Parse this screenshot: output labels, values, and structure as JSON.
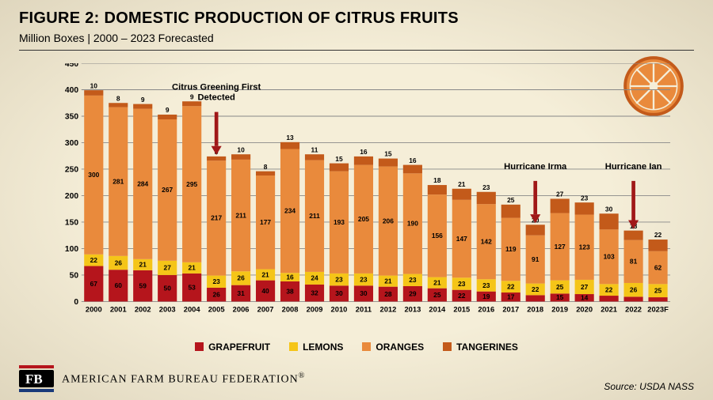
{
  "title": "FIGURE 2: DOMESTIC PRODUCTION OF CITRUS FRUITS",
  "title_fontsize": 20,
  "subtitle": "Million Boxes | 2000 – 2023 Forecasted",
  "subtitle_fontsize": 14,
  "background_color": "#f5eed8",
  "chart": {
    "type": "stacked-bar",
    "ylim": [
      0,
      450
    ],
    "ytick_step": 50,
    "yticks": [
      0,
      50,
      100,
      150,
      200,
      250,
      300,
      350,
      400,
      450
    ],
    "bar_width_ratio": 0.78,
    "grid_color": "#888888",
    "categories": [
      "2000",
      "2001",
      "2002",
      "2003",
      "2004",
      "2005",
      "2006",
      "2007",
      "2008",
      "2009",
      "2010",
      "2011",
      "2012",
      "2013",
      "2014",
      "2015",
      "2016",
      "2017",
      "2018",
      "2019",
      "2020",
      "2021",
      "2022",
      "2023F"
    ],
    "series": [
      {
        "name": "GRAPEFRUIT",
        "color": "#b5151c",
        "values": [
          67,
          60,
          59,
          50,
          53,
          26,
          31,
          40,
          38,
          32,
          30,
          30,
          28,
          29,
          25,
          22,
          19,
          17,
          12,
          15,
          14,
          11,
          9,
          8
        ]
      },
      {
        "name": "LEMONS",
        "color": "#f5c518",
        "values": [
          22,
          26,
          21,
          27,
          21,
          23,
          26,
          21,
          16,
          24,
          23,
          23,
          21,
          23,
          21,
          23,
          23,
          22,
          22,
          25,
          27,
          22,
          26,
          25
        ]
      },
      {
        "name": "ORANGES",
        "color": "#e98a3c",
        "values": [
          300,
          281,
          284,
          267,
          295,
          217,
          211,
          177,
          234,
          211,
          193,
          205,
          206,
          190,
          156,
          147,
          142,
          119,
          91,
          127,
          123,
          103,
          81,
          62
        ]
      },
      {
        "name": "TANGERINES",
        "color": "#c35a1a",
        "values": [
          10,
          8,
          9,
          9,
          9,
          8,
          10,
          8,
          13,
          11,
          15,
          16,
          15,
          16,
          18,
          21,
          23,
          25,
          20,
          27,
          23,
          30,
          18,
          22
        ]
      }
    ],
    "label_fontsize": 9,
    "axis_label_fontsize": 11,
    "annotations": [
      {
        "text": "Citrus Greening First\nDetected",
        "year": "2005",
        "y_top": 400
      },
      {
        "text": "Hurricane Irma",
        "year": "2018",
        "y_top": 250
      },
      {
        "text": "Hurricane Ian",
        "year": "2022",
        "y_top": 250
      }
    ],
    "arrow_color": "#a01818"
  },
  "legend": {
    "items": [
      {
        "label": "GRAPEFRUIT",
        "color": "#b5151c"
      },
      {
        "label": "LEMONS",
        "color": "#f5c518"
      },
      {
        "label": "ORANGES",
        "color": "#e98a3c"
      },
      {
        "label": "TANGERINES",
        "color": "#c35a1a"
      }
    ]
  },
  "footer": {
    "brand": "AMERICAN FARM BUREAU FEDERATION",
    "source": "Source: USDA NASS"
  },
  "icon": {
    "fill": "#e98a3c",
    "stroke": "#c35a1a"
  }
}
